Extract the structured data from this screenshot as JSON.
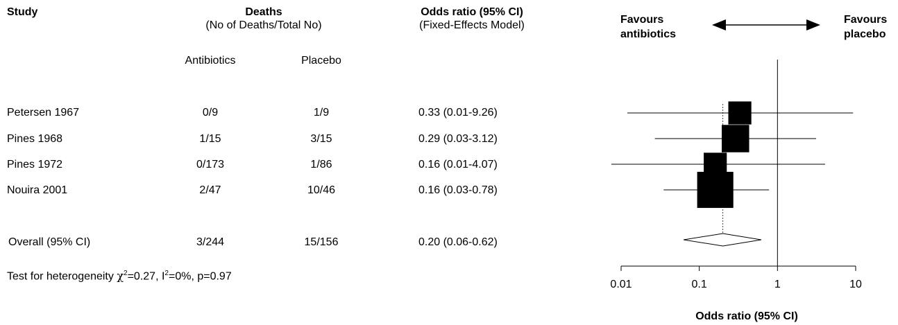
{
  "headers": {
    "study": "Study",
    "deaths": "Deaths",
    "deaths_sub": "(No of Deaths/Total No)",
    "antibiotics": "Antibiotics",
    "placebo": "Placebo",
    "or": "Odds ratio (95% CI)",
    "or_sub": "(Fixed-Effects Model)"
  },
  "favours": {
    "left_line1": "Favours",
    "left_line2": "antibiotics",
    "right_line1": "Favours",
    "right_line2": "placebo"
  },
  "heterogeneity": {
    "prefix": "Test for heterogeneity ",
    "chi_symbol": "χ",
    "chi_sup": "2",
    "mid": "=0.27, I",
    "i_sup": "2",
    "suffix": "=0%, p=0.97"
  },
  "chart_data": {
    "type": "forest",
    "xscale": "log",
    "xlim": [
      0.01,
      10
    ],
    "xticks": [
      "0.01",
      "0.1",
      "1",
      "10"
    ],
    "xlabel": "Odds ratio (95% CI)",
    "reference_line": 1,
    "pooled_line": 0.2,
    "studies": [
      {
        "name": "Petersen 1967",
        "antibiotics": "0/9",
        "placebo": "1/9",
        "or_text": "0.33 (0.01-9.26)",
        "or": 0.33,
        "lo": 0.012,
        "hi": 9.26,
        "weight": 0.16
      },
      {
        "name": "Pines 1968",
        "antibiotics": "1/15",
        "placebo": "3/15",
        "or_text": "0.29 (0.03-3.12)",
        "or": 0.29,
        "lo": 0.027,
        "hi": 3.12,
        "weight": 0.25
      },
      {
        "name": "Pines 1972",
        "antibiotics": "0/173",
        "placebo": "1/86",
        "or_text": "0.16 (0.01-4.07)",
        "or": 0.16,
        "lo": 0.0075,
        "hi": 4.07,
        "weight": 0.16
      },
      {
        "name": "Nouira 2001",
        "antibiotics": "2/47",
        "placebo": "10/46",
        "or_text": "0.16 (0.03-0.78)",
        "or": 0.16,
        "lo": 0.035,
        "hi": 0.78,
        "weight": 0.43
      }
    ],
    "overall": {
      "name": "Overall (95% CI)",
      "antibiotics": "3/244",
      "placebo": "15/156",
      "or_text": "0.20 (0.06-0.62)",
      "or": 0.2,
      "lo": 0.063,
      "hi": 0.62
    }
  }
}
